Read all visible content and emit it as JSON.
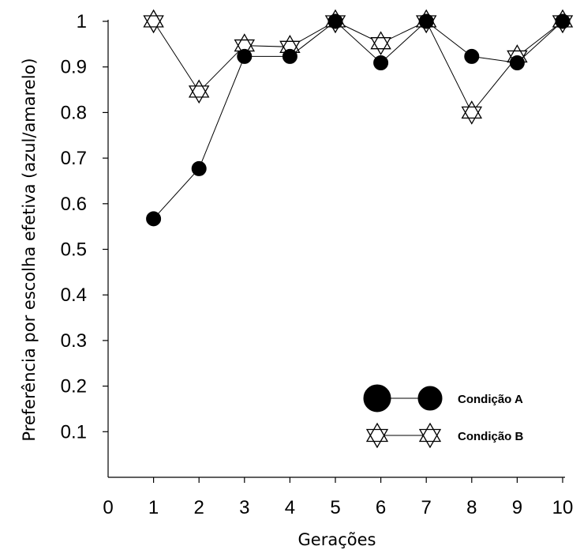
{
  "chart_data": {
    "type": "line",
    "xlabel": "Gerações",
    "ylabel": "Preferência por escolha efetiva (azul/amarelo)",
    "xlim": [
      0,
      10
    ],
    "ylim": [
      0,
      1
    ],
    "x_ticks": [
      "0",
      "1",
      "2",
      "3",
      "4",
      "5",
      "6",
      "7",
      "8",
      "9",
      "10"
    ],
    "y_ticks": [
      "0.1",
      "0.2",
      "0.3",
      "0.4",
      "0.5",
      "0.6",
      "0.7",
      "0.8",
      "0.9",
      "1"
    ],
    "grid": false,
    "legend_position": "bottom-right",
    "x": [
      1,
      2,
      3,
      4,
      5,
      6,
      7,
      8,
      9,
      10
    ],
    "series": [
      {
        "name": "Condição A",
        "marker": "filled-circle",
        "color": "#000000",
        "values": [
          0.567,
          0.677,
          0.923,
          0.923,
          1.0,
          0.909,
          1.0,
          0.923,
          0.909,
          1.0
        ]
      },
      {
        "name": "Condição B",
        "marker": "hexagram",
        "color": "#000000",
        "values": [
          1.0,
          0.846,
          0.947,
          0.944,
          1.0,
          0.952,
          1.0,
          0.8,
          0.923,
          1.0
        ]
      }
    ]
  }
}
